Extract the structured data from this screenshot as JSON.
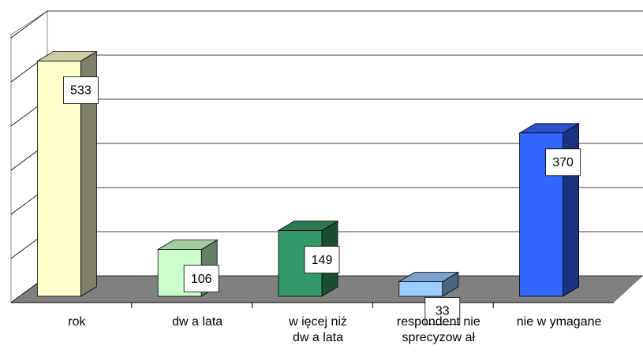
{
  "chart_data": {
    "type": "bar3d",
    "categories": [
      "rok",
      "dw a lata",
      "w ięcej niż\ndw a lata",
      "respondent nie\nsprecyzow ał",
      "nie w ymagane"
    ],
    "values": [
      533,
      106,
      149,
      33,
      370
    ],
    "colors": [
      "#ffffcc",
      "#ccffcc",
      "#339966",
      "#99ccff",
      "#3366ff"
    ],
    "ylim": [
      0,
      600
    ],
    "yticks": [
      0,
      100,
      200,
      300,
      400,
      500,
      600
    ],
    "grid": true
  }
}
